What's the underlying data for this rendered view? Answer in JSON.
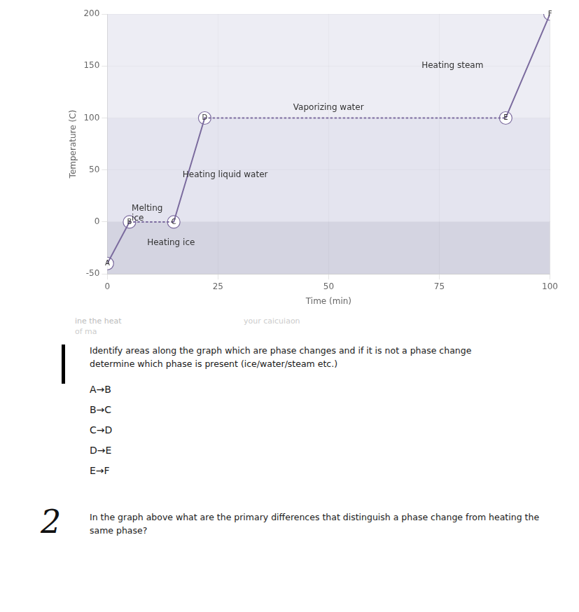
{
  "chart_data": {
    "type": "line",
    "x": [
      0,
      5,
      15,
      22,
      90,
      100
    ],
    "values": [
      -40,
      0,
      0,
      100,
      100,
      200
    ],
    "point_labels": [
      "A",
      "B",
      "C",
      "D",
      "E",
      "F"
    ],
    "line_styles": [
      "solid",
      "dotted",
      "solid",
      "dotted",
      "solid"
    ],
    "color": "#7b6b9e",
    "bands": [
      {
        "from": -50,
        "to": 0,
        "color": "#c2c2d4"
      },
      {
        "from": 0,
        "to": 100,
        "color": "#d8d8e8"
      },
      {
        "from": 100,
        "to": 200,
        "color": "#e6e6f0"
      }
    ],
    "xlim": [
      0,
      100
    ],
    "ylim": [
      -50,
      200
    ],
    "xticks": [
      0,
      25,
      50,
      75,
      100
    ],
    "yticks": [
      -50,
      0,
      50,
      100,
      150,
      200
    ],
    "xlabel": "Time (min)",
    "ylabel": "Temperature (C)",
    "grid": true,
    "annotations": [
      {
        "text": "Heating ice",
        "x": 9,
        "y": -20
      },
      {
        "text": "Melting\nice",
        "x": 5.5,
        "y": 8
      },
      {
        "text": "Heating liquid water",
        "x": 17,
        "y": 45
      },
      {
        "text": "Vaporizing water",
        "x": 42,
        "y": 110
      },
      {
        "text": "Heating steam",
        "x": 71,
        "y": 150
      }
    ]
  },
  "worksheet": {
    "faded_texts": [
      {
        "text": "ine the heat",
        "color": "#bbbbbb"
      },
      {
        "text": "your caicuiaon",
        "color": "#cccccc"
      },
      {
        "text": "of ma",
        "color": "#cccccc"
      }
    ],
    "questions": [
      {
        "text": "Identify areas along the graph which are phase changes and if it is not a phase change\ndetermine which phase is present (ice/water/steam etc.)",
        "items": [
          "A→B",
          "B→C",
          "C→D",
          "D→E",
          "E→F"
        ]
      },
      {
        "number": "2",
        "text": "In the graph above what are the primary differences that distinguish a phase change from heating the\nsame phase?"
      }
    ]
  }
}
